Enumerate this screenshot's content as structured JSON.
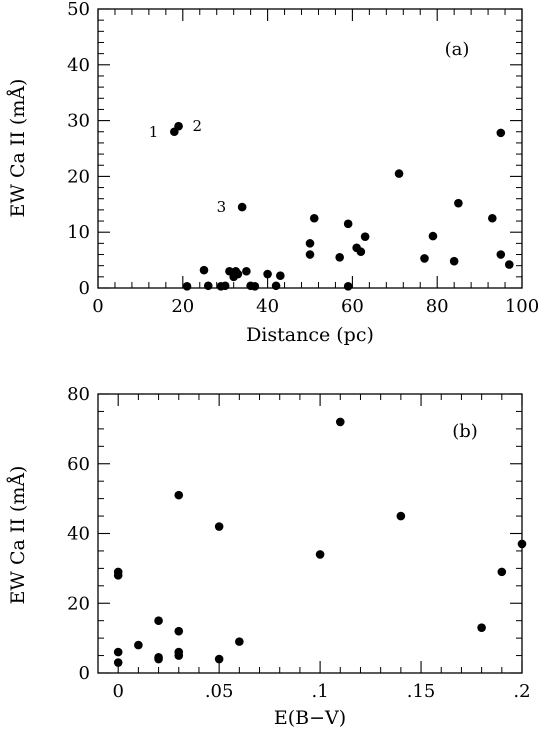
{
  "chart_data": [
    {
      "type": "scatter",
      "panel_label": "(a)",
      "xlabel": "Distance (pc)",
      "ylabel": "EW Ca II (mÅ)",
      "xlim": [
        0,
        100
      ],
      "ylim": [
        0,
        50
      ],
      "x_ticks": [
        "0",
        "20",
        "40",
        "60",
        "80",
        "100"
      ],
      "y_ticks": [
        "0",
        "10",
        "20",
        "30",
        "40",
        "50"
      ],
      "grid": false,
      "points": [
        {
          "x": 18,
          "y": 28,
          "label": "1"
        },
        {
          "x": 19,
          "y": 29,
          "label": "2"
        },
        {
          "x": 34,
          "y": 14.5,
          "label": "3"
        },
        {
          "x": 21,
          "y": 0.3
        },
        {
          "x": 25,
          "y": 3.2
        },
        {
          "x": 26,
          "y": 0.4
        },
        {
          "x": 29,
          "y": 0.3
        },
        {
          "x": 30,
          "y": 0.4
        },
        {
          "x": 31,
          "y": 3.0
        },
        {
          "x": 32,
          "y": 2.0
        },
        {
          "x": 32.5,
          "y": 3.0
        },
        {
          "x": 33,
          "y": 2.5
        },
        {
          "x": 35,
          "y": 3.0
        },
        {
          "x": 36,
          "y": 0.4
        },
        {
          "x": 37,
          "y": 0.3
        },
        {
          "x": 40,
          "y": 2.5
        },
        {
          "x": 42,
          "y": 0.4
        },
        {
          "x": 43,
          "y": 2.2
        },
        {
          "x": 50,
          "y": 8.0
        },
        {
          "x": 50,
          "y": 6.0
        },
        {
          "x": 51,
          "y": 12.5
        },
        {
          "x": 57,
          "y": 5.5
        },
        {
          "x": 59,
          "y": 11.5
        },
        {
          "x": 59,
          "y": 0.3
        },
        {
          "x": 61,
          "y": 7.2
        },
        {
          "x": 62,
          "y": 6.5
        },
        {
          "x": 63,
          "y": 9.2
        },
        {
          "x": 71,
          "y": 20.5
        },
        {
          "x": 77,
          "y": 5.3
        },
        {
          "x": 79,
          "y": 9.3
        },
        {
          "x": 84,
          "y": 4.8
        },
        {
          "x": 85,
          "y": 15.2
        },
        {
          "x": 93,
          "y": 12.5
        },
        {
          "x": 95,
          "y": 27.8
        },
        {
          "x": 95,
          "y": 6.0
        },
        {
          "x": 97,
          "y": 4.2
        }
      ]
    },
    {
      "type": "scatter",
      "panel_label": "(b)",
      "xlabel": "E(B−V)",
      "ylabel": "EW Ca II (mÅ)",
      "xlim": [
        -0.01,
        0.2
      ],
      "ylim": [
        0,
        80
      ],
      "x_ticks": [
        "0",
        ".05",
        ".1",
        ".15",
        ".2"
      ],
      "y_ticks": [
        "0",
        "20",
        "40",
        "60",
        "80"
      ],
      "grid": false,
      "points": [
        {
          "x": 0,
          "y": 28
        },
        {
          "x": 0,
          "y": 29
        },
        {
          "x": 0,
          "y": 6
        },
        {
          "x": 0,
          "y": 3
        },
        {
          "x": 0.01,
          "y": 8
        },
        {
          "x": 0.02,
          "y": 15
        },
        {
          "x": 0.02,
          "y": 4
        },
        {
          "x": 0.02,
          "y": 4.5
        },
        {
          "x": 0.03,
          "y": 51
        },
        {
          "x": 0.03,
          "y": 12
        },
        {
          "x": 0.03,
          "y": 6
        },
        {
          "x": 0.03,
          "y": 5
        },
        {
          "x": 0.05,
          "y": 42
        },
        {
          "x": 0.05,
          "y": 4
        },
        {
          "x": 0.06,
          "y": 9
        },
        {
          "x": 0.1,
          "y": 34
        },
        {
          "x": 0.11,
          "y": 72
        },
        {
          "x": 0.14,
          "y": 45
        },
        {
          "x": 0.18,
          "y": 13
        },
        {
          "x": 0.19,
          "y": 29
        },
        {
          "x": 0.2,
          "y": 37
        }
      ]
    }
  ]
}
